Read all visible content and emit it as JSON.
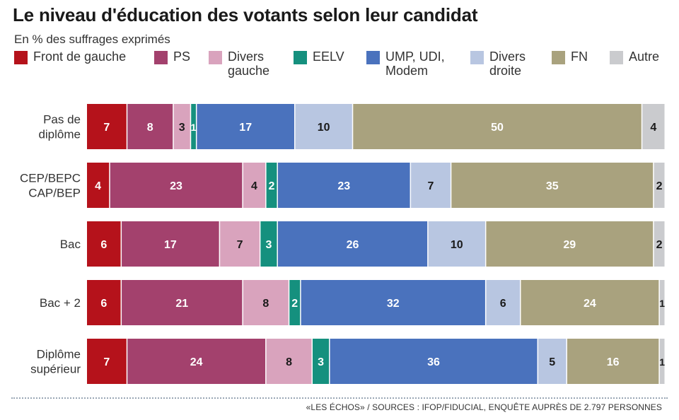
{
  "title": "Le niveau d'éducation des votants selon leur candidat",
  "subtitle": "En % des suffrages exprimés",
  "source": "«LES ÉCHOS» / SOURCES : IFOP/FIDUCIAL, ENQUÊTE AUPRÈS DE 2.797 PERSONNES",
  "colors": {
    "Front de gauche": "#b5121b",
    "PS": "#a3416d",
    "Divers gauche": "#d9a3bd",
    "EELV": "#15907e",
    "UMP, UDI, Modem": "#4a72bd",
    "Divers droite": "#b8c6e1",
    "FN": "#a9a27e",
    "Autre": "#cacbce"
  },
  "chart_data": {
    "type": "bar",
    "orientation": "horizontal",
    "stacked": true,
    "title": "Le niveau d'éducation des votants selon leur candidat",
    "subtitle": "En % des suffrages exprimés",
    "unit": "%",
    "legend_position": "top",
    "grid": false,
    "categories": [
      "Pas de\ndiplôme",
      "CEP/BEPC\nCAP/BEP",
      "Bac",
      "Bac + 2",
      "Diplôme\nsupérieur"
    ],
    "series": [
      {
        "name": "Front de gauche",
        "label": "Front de gauche",
        "values": [
          7,
          4,
          6,
          6,
          7
        ]
      },
      {
        "name": "PS",
        "label": "PS",
        "values": [
          8,
          23,
          17,
          21,
          24
        ]
      },
      {
        "name": "Divers gauche",
        "label": "Divers\ngauche",
        "values": [
          3,
          4,
          7,
          8,
          8
        ]
      },
      {
        "name": "EELV",
        "label": "EELV",
        "values": [
          1,
          2,
          3,
          2,
          3
        ]
      },
      {
        "name": "UMP, UDI, Modem",
        "label": "UMP, UDI,\nModem",
        "values": [
          17,
          23,
          26,
          32,
          36
        ]
      },
      {
        "name": "Divers droite",
        "label": "Divers\ndroite",
        "values": [
          10,
          7,
          10,
          6,
          5
        ]
      },
      {
        "name": "FN",
        "label": "FN",
        "values": [
          50,
          35,
          29,
          24,
          16
        ]
      },
      {
        "name": "Autre",
        "label": "Autre",
        "values": [
          4,
          2,
          2,
          1,
          1
        ]
      }
    ]
  }
}
